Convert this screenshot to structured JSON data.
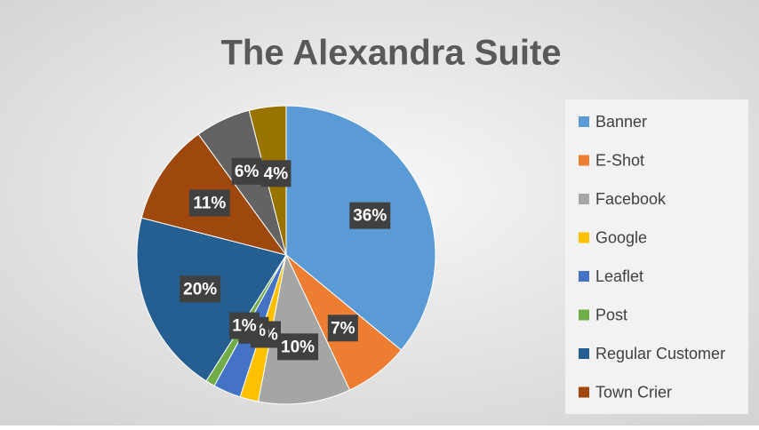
{
  "chart_data": {
    "type": "pie",
    "title": "The Alexandra Suite",
    "categories": [
      "Banner",
      "E-Shot",
      "Facebook",
      "Google",
      "Leaflet",
      "Post",
      "Regular Customer",
      "Town Crier",
      null,
      null
    ],
    "values": [
      36,
      7,
      10,
      2,
      3,
      1,
      20,
      11,
      6,
      4
    ],
    "value_labels": [
      "36%",
      "7%",
      "10%",
      "2%",
      "3%",
      "1%",
      "20%",
      "11%",
      "6%",
      "4%"
    ],
    "colors": [
      "#5b9bd5",
      "#ed7d31",
      "#a5a5a5",
      "#ffc000",
      "#4472c4",
      "#70ad47",
      "#255e91",
      "#9e480e",
      "#636363",
      "#997300"
    ],
    "legend": "right"
  }
}
